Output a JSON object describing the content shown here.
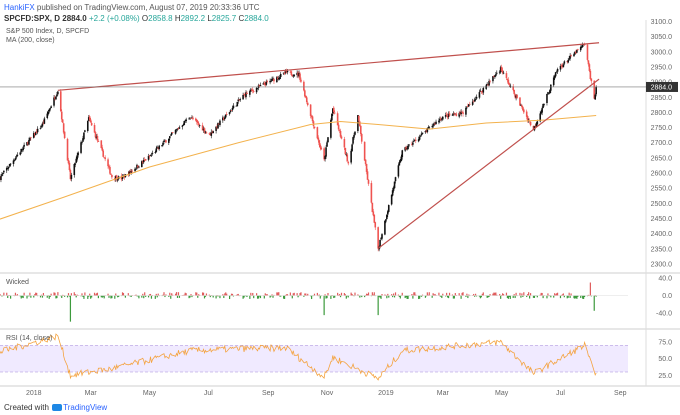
{
  "header": {
    "author": "HankiFX",
    "published_text": " published on TradingView.com, August 07, 2019 20:33:36 UTC"
  },
  "quote": {
    "symbol": "SPCFD:SPX, D",
    "last": "2884.0",
    "change": "+2.2 (+0.08%)",
    "open_label": "O",
    "open": "2858.8",
    "high_label": "H",
    "high": "2892.2",
    "low_label": "L",
    "low": "2825.7",
    "close_label": "C",
    "close": "2884.0"
  },
  "legend": {
    "main": "S&P 500 Index, D, SPCFD",
    "ma": "MA (200, close)",
    "wicked": "Wicked",
    "rsi": "RSI (14, close)"
  },
  "footer": {
    "created_with": "Created with",
    "brand": "TradingView"
  },
  "colors": {
    "up": "#111111",
    "down": "#ef5350",
    "ma": "#f3b24d",
    "trend": "#c0504d",
    "rsi": "#f4a340",
    "rsi_band": "#e6dcff",
    "wick_pos": "#e05c5c",
    "wick_neg": "#3c9a3c",
    "last_price_bg": "#333333"
  },
  "chart_data": {
    "type": "candlestick",
    "title": "S&P 500 Index, D, SPCFD",
    "x_tick_labels": [
      "2018",
      "Mar",
      "May",
      "Jul",
      "Sep",
      "Nov",
      "2019",
      "Mar",
      "May",
      "Jul",
      "Sep"
    ],
    "price_axis": {
      "ticks": [
        2300,
        2350,
        2400,
        2450,
        2500,
        2550,
        2600,
        2650,
        2700,
        2750,
        2800,
        2850,
        2900,
        2950,
        3000,
        3050,
        3100
      ],
      "ylim": [
        2280,
        3105
      ],
      "last_price": 2884.0
    },
    "price_path": [
      [
        "2017-11-27",
        2585
      ],
      [
        "2017-12-15",
        2660
      ],
      [
        "2018-01-10",
        2760
      ],
      [
        "2018-01-26",
        2873
      ],
      [
        "2018-02-08",
        2581
      ],
      [
        "2018-02-27",
        2780
      ],
      [
        "2018-03-23",
        2588
      ],
      [
        "2018-04-02",
        2582
      ],
      [
        "2018-05-01",
        2654
      ],
      [
        "2018-06-12",
        2786
      ],
      [
        "2018-07-02",
        2726
      ],
      [
        "2018-08-07",
        2858
      ],
      [
        "2018-09-20",
        2931
      ],
      [
        "2018-10-03",
        2925
      ],
      [
        "2018-10-29",
        2641
      ],
      [
        "2018-11-07",
        2813
      ],
      [
        "2018-11-23",
        2633
      ],
      [
        "2018-12-03",
        2790
      ],
      [
        "2018-12-24",
        2351
      ],
      [
        "2019-01-18",
        2670
      ],
      [
        "2019-02-28",
        2784
      ],
      [
        "2019-03-22",
        2800
      ],
      [
        "2019-04-30",
        2945
      ],
      [
        "2019-06-03",
        2744
      ],
      [
        "2019-06-28",
        2942
      ],
      [
        "2019-07-26",
        3025
      ],
      [
        "2019-08-05",
        2845
      ],
      [
        "2019-08-07",
        2884
      ]
    ],
    "ma_200": [
      [
        "2017-11-27",
        2448
      ],
      [
        "2018-02-01",
        2520
      ],
      [
        "2018-05-01",
        2620
      ],
      [
        "2018-08-01",
        2700
      ],
      [
        "2018-10-15",
        2760
      ],
      [
        "2018-11-15",
        2770
      ],
      [
        "2018-12-24",
        2760
      ],
      [
        "2019-02-15",
        2745
      ],
      [
        "2019-04-15",
        2765
      ],
      [
        "2019-06-15",
        2775
      ],
      [
        "2019-08-07",
        2790
      ]
    ],
    "trend_lines": [
      {
        "name": "upper",
        "start": [
          "2018-01-26",
          2873
        ],
        "end": [
          "2019-08-10",
          3030
        ]
      },
      {
        "name": "lower",
        "start": [
          "2018-12-24",
          2351
        ],
        "end": [
          "2019-08-10",
          2910
        ]
      }
    ],
    "wicked": {
      "ticks": [
        -40.0,
        0.0,
        40.0
      ],
      "ylim": [
        -70,
        45
      ],
      "notable": [
        [
          "2018-02-08",
          -60
        ],
        [
          "2018-10-29",
          -45
        ],
        [
          "2018-12-24",
          -45
        ],
        [
          "2019-08-01",
          30
        ],
        [
          "2019-08-05",
          -35
        ]
      ]
    },
    "rsi": {
      "ticks": [
        25.0,
        50.0,
        75.0
      ],
      "ylim": [
        15,
        90
      ],
      "band": [
        30,
        70
      ],
      "path": [
        [
          "2017-11-27",
          60
        ],
        [
          "2018-01-26",
          84
        ],
        [
          "2018-02-08",
          25
        ],
        [
          "2018-03-23",
          35
        ],
        [
          "2018-06-12",
          62
        ],
        [
          "2018-08-07",
          65
        ],
        [
          "2018-09-20",
          66
        ],
        [
          "2018-10-29",
          22
        ],
        [
          "2018-11-07",
          52
        ],
        [
          "2018-12-24",
          20
        ],
        [
          "2019-01-18",
          62
        ],
        [
          "2019-04-30",
          75
        ],
        [
          "2019-06-03",
          28
        ],
        [
          "2019-07-26",
          70
        ],
        [
          "2019-08-05",
          28
        ],
        [
          "2019-08-07",
          33
        ]
      ]
    }
  }
}
